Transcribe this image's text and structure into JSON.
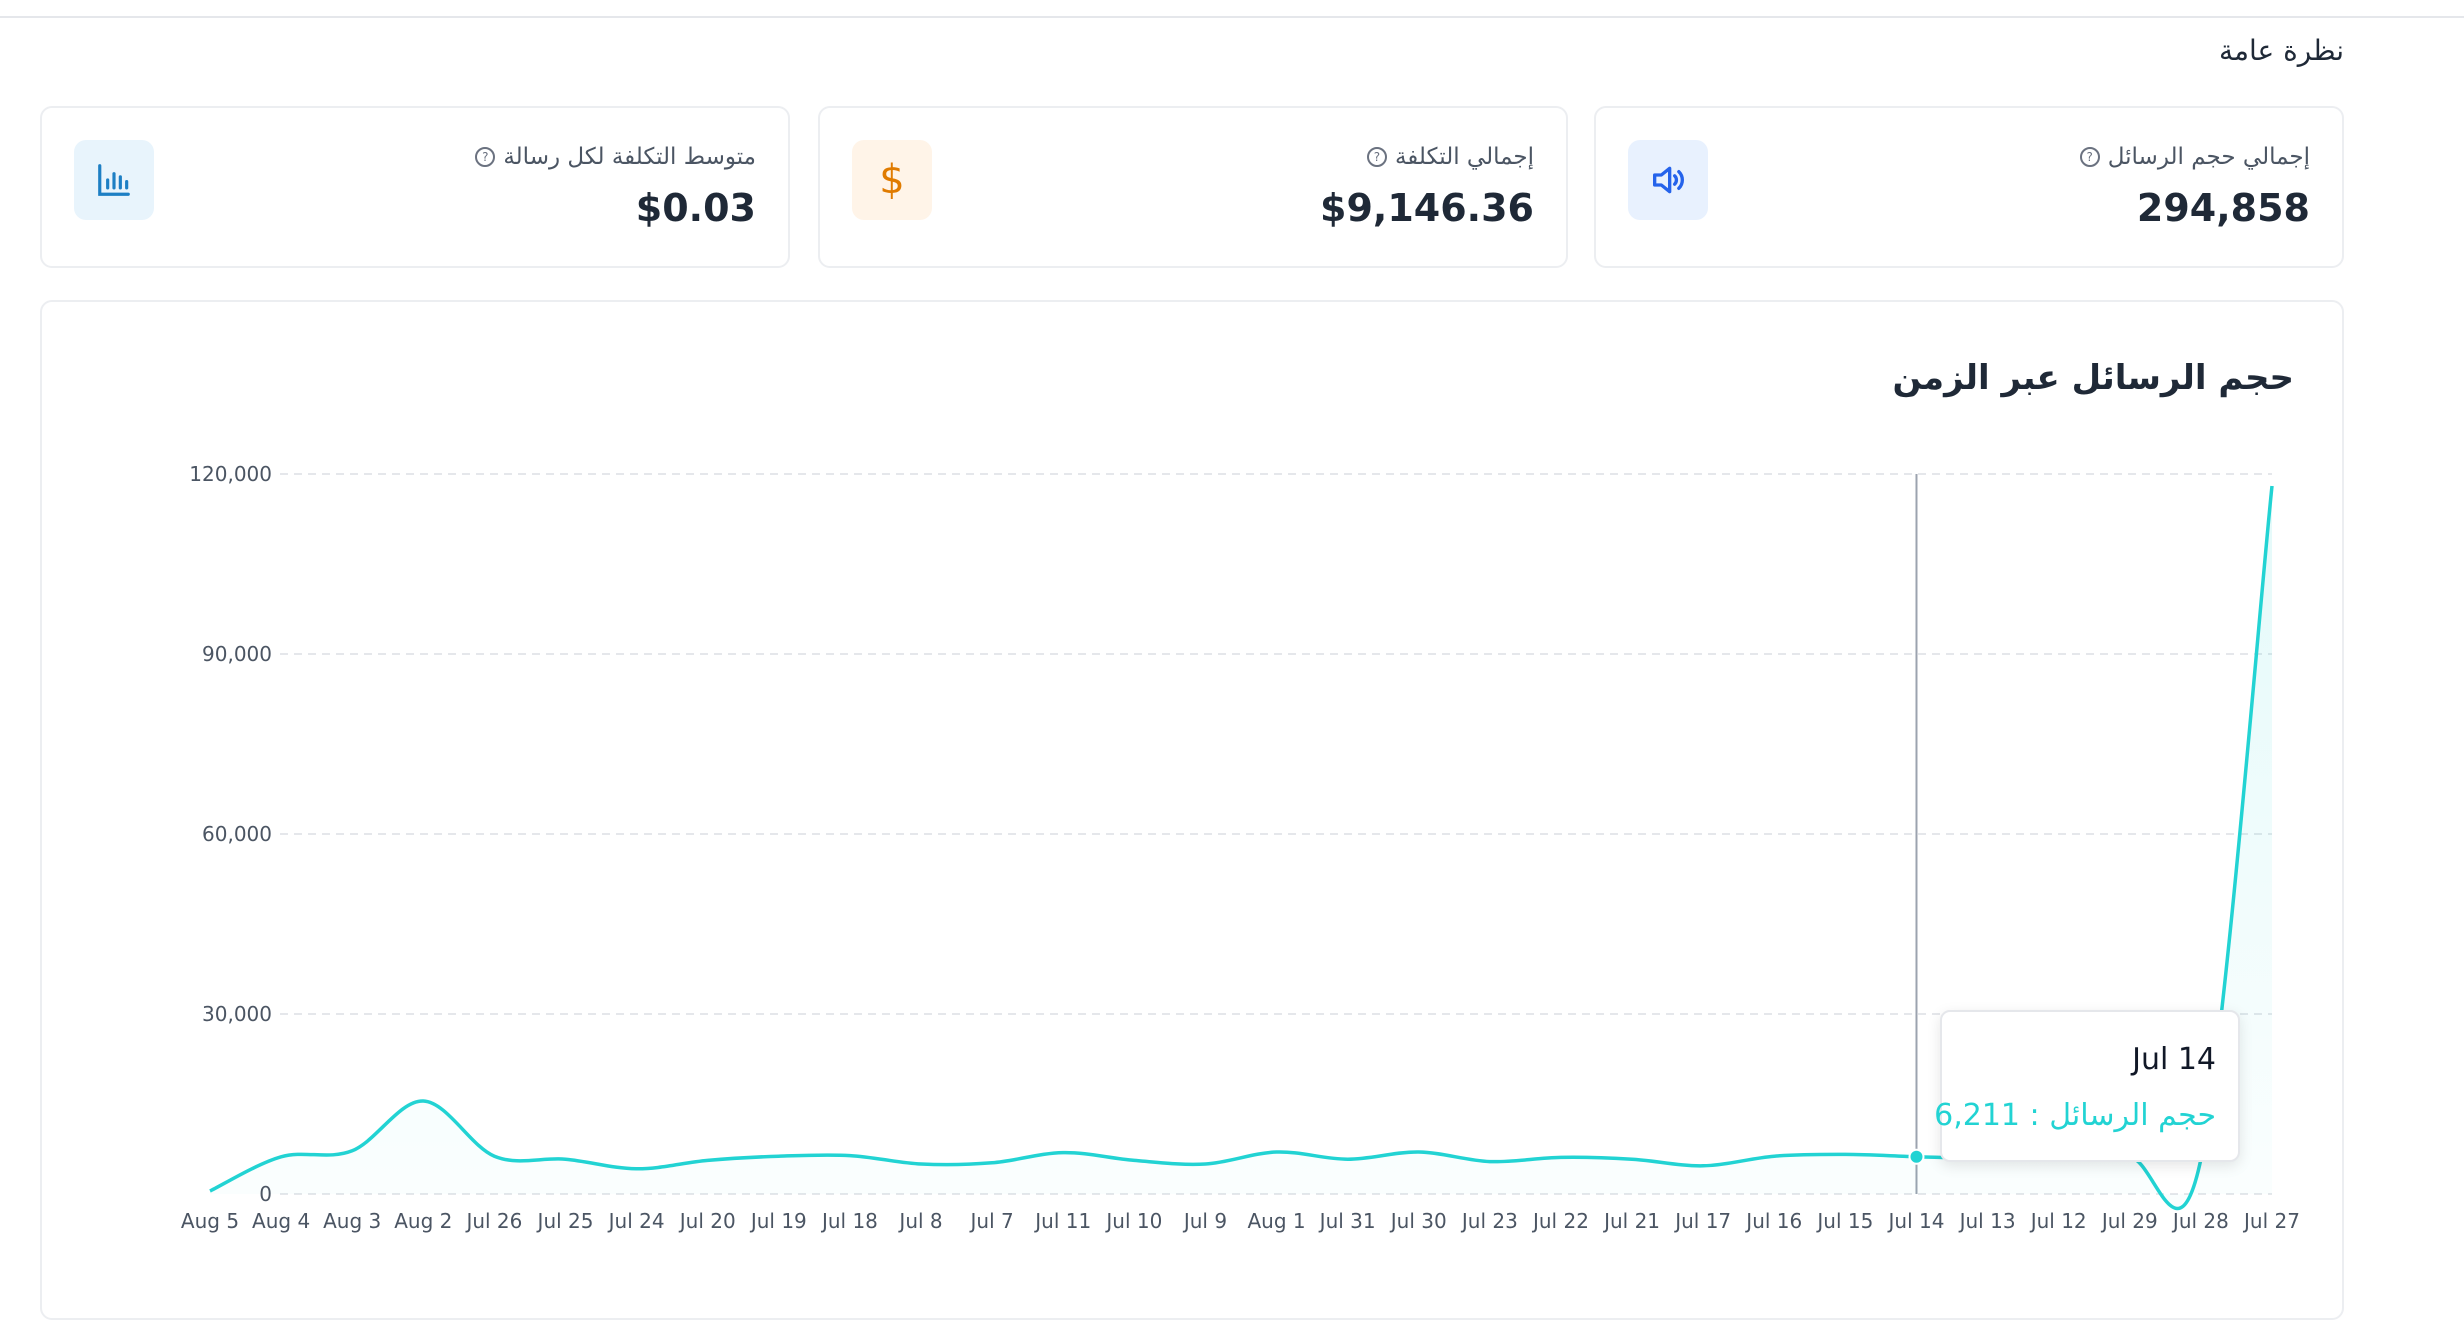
{
  "section_title": "نظرة عامة",
  "cards": [
    {
      "label": "إجمالي حجم الرسائل",
      "value": "294,858",
      "icon": "speaker-icon",
      "icon_bg": "#e8f1fe",
      "icon_color": "#2563eb"
    },
    {
      "label": "إجمالي التكلفة",
      "value": "$9,146.36",
      "icon": "dollar-icon",
      "icon_bg": "#fff4e8",
      "icon_color": "#e07b00"
    },
    {
      "label": "متوسط التكلفة لكل رسالة",
      "value": "$0.03",
      "icon": "bar-chart-icon",
      "icon_bg": "#e8f4fc",
      "icon_color": "#1d7fc4"
    }
  ],
  "tooltip": {
    "date": "Jul 14",
    "series_label": "حجم الرسائل",
    "value": "6,211"
  },
  "chart_data": {
    "type": "area",
    "title": "حجم الرسائل عبر الزمن",
    "categories": [
      "Aug 5",
      "Aug 4",
      "Aug 3",
      "Aug 2",
      "Jul 26",
      "Jul 25",
      "Jul 24",
      "Jul 20",
      "Jul 19",
      "Jul 18",
      "Jul 8",
      "Jul 7",
      "Jul 11",
      "Jul 10",
      "Jul 9",
      "Aug 1",
      "Jul 31",
      "Jul 30",
      "Jul 23",
      "Jul 22",
      "Jul 21",
      "Jul 17",
      "Jul 16",
      "Jul 15",
      "Jul 14",
      "Jul 13",
      "Jul 12",
      "Jul 29",
      "Jul 28",
      "Jul 27"
    ],
    "series": [
      {
        "name": "حجم الرسائل",
        "color": "#22d3d3",
        "values": [
          500,
          6200,
          7200,
          15500,
          6300,
          5800,
          4200,
          5600,
          6300,
          6400,
          5000,
          5200,
          6900,
          5600,
          5000,
          7000,
          5800,
          7000,
          5400,
          6100,
          5800,
          4700,
          6300,
          6600,
          6211,
          5900,
          6000,
          6100,
          5800,
          118000
        ]
      }
    ],
    "ylim": [
      0,
      120000
    ],
    "yticks": [
      0,
      30000,
      60000,
      90000,
      120000
    ],
    "ytick_labels": [
      "0",
      "30,000",
      "60,000",
      "90,000",
      "120,000"
    ],
    "grid": true,
    "active_category": "Jul 14"
  }
}
